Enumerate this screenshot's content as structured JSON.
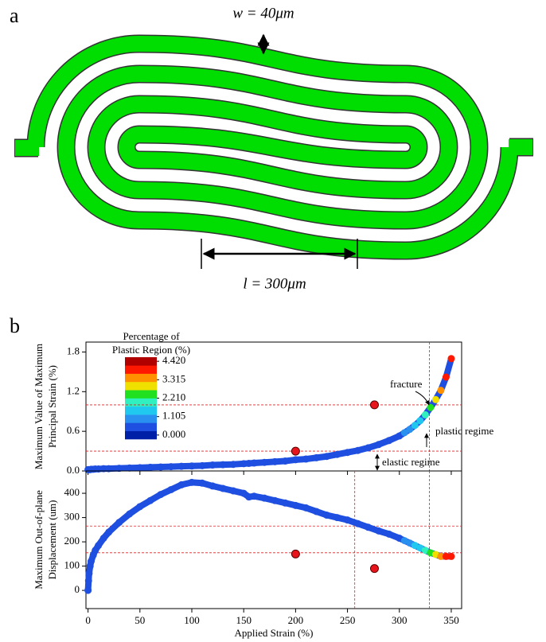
{
  "panel_a": {
    "label": "a",
    "width_label": "w = 40μm",
    "length_label": "l = 300μm"
  },
  "panel_b": {
    "label": "b"
  },
  "colorbar": {
    "title_lines": [
      "Percentage of",
      "Plastic Region (%)"
    ],
    "ticks": [
      {
        "value": 0,
        "label": "0.000"
      },
      1.105,
      {
        "value": 2.21,
        "label": "2.210"
      },
      3.315,
      {
        "value": 4.42,
        "label": "4.420"
      }
    ],
    "colors": [
      "#0020a8",
      "#1f4fe0",
      "#2a90f0",
      "#20c8f0",
      "#30f0c0",
      "#20e020",
      "#f0e000",
      "#ff9000",
      "#ff1800",
      "#b00000"
    ]
  },
  "chart_data": [
    {
      "type": "scatter",
      "ylabel_lines": [
        "Maximum Value of Maximum",
        "Principal Strain (%)"
      ],
      "xlim": [
        -2,
        360
      ],
      "xticks": [
        0,
        50,
        100,
        150,
        200,
        250,
        300,
        350
      ],
      "ylim": [
        0,
        1.95
      ],
      "yticks": [
        {
          "value": 0,
          "label": "0.0"
        },
        0.6,
        1.2,
        1.8
      ],
      "hlines": [
        1.0,
        0.3
      ],
      "vlines": [
        329
      ],
      "annotations": [
        "fracture",
        "plastic regime",
        "elastic regime"
      ],
      "series": [
        {
          "color": "#1f4fe0",
          "x": [
            0,
            0.5,
            1,
            2,
            3,
            5,
            7,
            10,
            15,
            20,
            30,
            40,
            50,
            60,
            70,
            80,
            90,
            100,
            110,
            120,
            130,
            140,
            150,
            155,
            160,
            170,
            180,
            190,
            200,
            210,
            220,
            230,
            240,
            250,
            260,
            270,
            280,
            290,
            300,
            305,
            310,
            315,
            320,
            325,
            330,
            335,
            340,
            345,
            350
          ],
          "values": [
            0.02,
            0.02,
            0.02,
            0.02,
            0.025,
            0.025,
            0.03,
            0.03,
            0.035,
            0.035,
            0.04,
            0.045,
            0.05,
            0.055,
            0.06,
            0.065,
            0.07,
            0.075,
            0.08,
            0.09,
            0.095,
            0.1,
            0.11,
            0.115,
            0.12,
            0.13,
            0.14,
            0.15,
            0.17,
            0.18,
            0.2,
            0.22,
            0.25,
            0.28,
            0.31,
            0.35,
            0.4,
            0.46,
            0.53,
            0.58,
            0.63,
            0.69,
            0.76,
            0.85,
            0.96,
            1.08,
            1.22,
            1.42,
            1.7
          ],
          "color_values": [
            0.6,
            0.6,
            0.6,
            0.6,
            0.6,
            0.6,
            0.6,
            0.6,
            0.6,
            0.6,
            0.6,
            0.6,
            0.6,
            0.6,
            0.6,
            0.6,
            0.6,
            0.6,
            0.6,
            0.6,
            0.6,
            0.6,
            0.6,
            0.6,
            0.6,
            0.6,
            0.6,
            0.6,
            0.6,
            0.6,
            0.6,
            0.6,
            0.6,
            0.6,
            0.6,
            0.6,
            0.6,
            0.6,
            0.7,
            0.9,
            1.0,
            1.3,
            1.6,
            1.9,
            2.3,
            2.8,
            3.3,
            3.7,
            3.9
          ]
        },
        {
          "color": "#e8141c",
          "x": [
            200,
            276
          ],
          "values": [
            0.3,
            1.0
          ]
        }
      ]
    },
    {
      "type": "scatter",
      "ylabel_lines": [
        "Maximum Out-of-plane",
        "Displacement (um)"
      ],
      "xlabel": "Applied Strain (%)",
      "xlim": [
        -2,
        360
      ],
      "xticks": [
        0,
        50,
        100,
        150,
        200,
        250,
        300,
        350
      ],
      "ylim": [
        -75,
        492
      ],
      "yticks": [
        0,
        100,
        200,
        300,
        400
      ],
      "hlines": [
        265,
        155
      ],
      "vlines": [
        257,
        329
      ],
      "series": [
        {
          "color": "#1f4fe0",
          "x": [
            0,
            0.5,
            1,
            2,
            3,
            5,
            7,
            10,
            15,
            20,
            30,
            40,
            50,
            60,
            70,
            80,
            90,
            100,
            110,
            120,
            130,
            140,
            150,
            155,
            160,
            170,
            180,
            190,
            200,
            210,
            220,
            230,
            240,
            250,
            260,
            270,
            280,
            290,
            300,
            305,
            310,
            315,
            320,
            325,
            330,
            335,
            340,
            345,
            350
          ],
          "values": [
            0,
            40,
            70,
            100,
            120,
            145,
            165,
            185,
            215,
            240,
            280,
            315,
            345,
            370,
            395,
            415,
            435,
            445,
            442,
            430,
            420,
            410,
            400,
            385,
            388,
            380,
            370,
            360,
            350,
            340,
            325,
            310,
            300,
            290,
            275,
            260,
            245,
            232,
            215,
            205,
            195,
            185,
            175,
            165,
            155,
            148,
            140,
            140,
            140
          ],
          "color_values": [
            0.6,
            0.6,
            0.6,
            0.6,
            0.6,
            0.6,
            0.6,
            0.6,
            0.6,
            0.6,
            0.6,
            0.6,
            0.6,
            0.6,
            0.6,
            0.6,
            0.6,
            0.6,
            0.6,
            0.6,
            0.6,
            0.6,
            0.6,
            0.6,
            0.6,
            0.6,
            0.6,
            0.6,
            0.6,
            0.6,
            0.6,
            0.6,
            0.6,
            0.6,
            0.6,
            0.6,
            0.6,
            0.6,
            0.7,
            0.9,
            1.0,
            1.3,
            1.6,
            1.9,
            2.3,
            2.8,
            3.3,
            3.7,
            3.9
          ]
        },
        {
          "color": "#e8141c",
          "x": [
            200,
            276
          ],
          "values": [
            150,
            90
          ]
        }
      ]
    }
  ]
}
